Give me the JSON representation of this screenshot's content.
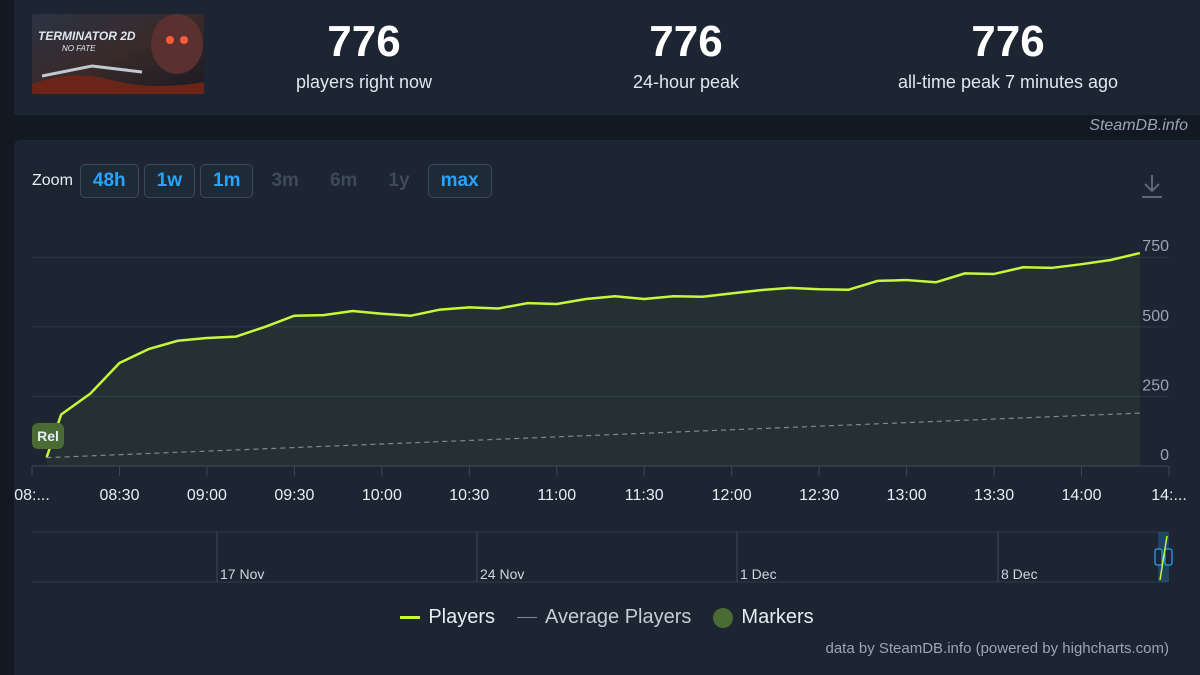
{
  "stats": [
    {
      "value": "776",
      "label": "players right now"
    },
    {
      "value": "776",
      "label": "24-hour peak"
    },
    {
      "value": "776",
      "label": "all-time peak 7 minutes ago"
    }
  ],
  "game": {
    "logo_title": "TERMINATOR 2D",
    "logo_subtitle": "NO FATE"
  },
  "credit_top": "SteamDB.info",
  "zoom": {
    "label": "Zoom",
    "buttons": [
      {
        "label": "48h",
        "active": true
      },
      {
        "label": "1w",
        "active": true
      },
      {
        "label": "1m",
        "active": true
      },
      {
        "label": "3m",
        "active": false
      },
      {
        "label": "6m",
        "active": false
      },
      {
        "label": "1y",
        "active": false
      },
      {
        "label": "max",
        "active": true
      }
    ]
  },
  "icons": {
    "download": "download-icon"
  },
  "colors": {
    "players": "#c7f73a",
    "average": "#7d8895",
    "marker": "#4a6b34",
    "accent": "#27a4ff"
  },
  "chart_data": {
    "type": "line",
    "x_tick_labels": [
      "08:...",
      "08:30",
      "09:00",
      "09:30",
      "10:00",
      "10:30",
      "11:00",
      "11:30",
      "12:00",
      "12:30",
      "13:00",
      "13:30",
      "14:00",
      "14:..."
    ],
    "y_ticks": [
      0,
      250,
      500,
      750
    ],
    "ylim": [
      0,
      776
    ],
    "series": [
      {
        "name": "Players",
        "x": [
          "08:05",
          "08:10",
          "08:20",
          "08:30",
          "08:40",
          "08:50",
          "09:00",
          "09:10",
          "09:20",
          "09:30",
          "09:40",
          "09:50",
          "10:00",
          "10:10",
          "10:20",
          "10:30",
          "10:40",
          "10:50",
          "11:00",
          "11:10",
          "11:20",
          "11:30",
          "11:40",
          "11:50",
          "12:00",
          "12:10",
          "12:20",
          "12:30",
          "12:40",
          "12:50",
          "13:00",
          "13:10",
          "13:20",
          "13:30",
          "13:40",
          "13:50",
          "14:00",
          "14:10",
          "14:20"
        ],
        "values": [
          30,
          185,
          260,
          370,
          420,
          450,
          460,
          465,
          500,
          540,
          542,
          557,
          547,
          540,
          562,
          570,
          566,
          585,
          582,
          600,
          610,
          600,
          610,
          608,
          620,
          632,
          640,
          635,
          633,
          665,
          668,
          660,
          692,
          690,
          714,
          712,
          725,
          740,
          765
        ]
      },
      {
        "name": "Average Players",
        "x": [
          "08:05",
          "14:20"
        ],
        "values": [
          30,
          190
        ]
      }
    ],
    "markers": [
      {
        "label": "Rel",
        "x": "08:05"
      }
    ],
    "navigator_labels": [
      "17 Nov",
      "24 Nov",
      "1 Dec",
      "8 Dec"
    ],
    "grid": true
  },
  "legend": {
    "players": "Players",
    "average": "Average Players",
    "markers": "Markers"
  },
  "credit_bottom": "data by SteamDB.info (powered by highcharts.com)"
}
